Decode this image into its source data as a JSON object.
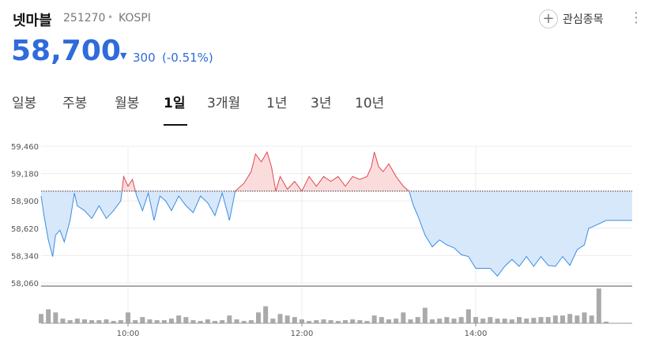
{
  "header": {
    "name": "넷마블",
    "code": "251270",
    "market": "KOSPI",
    "watch_button": "관심종목",
    "price": "58,700",
    "change": "300",
    "change_pct": "(-0.51%)"
  },
  "tabs": {
    "items": [
      "일봉",
      "주봉",
      "월봉",
      "1일",
      "3개월",
      "1년",
      "3년",
      "10년"
    ],
    "selected": 3
  },
  "chart_data": [
    {
      "type": "line",
      "x": [
        "09:00",
        "09:02",
        "09:05",
        "09:08",
        "09:10",
        "09:13",
        "09:16",
        "09:20",
        "09:23",
        "09:25",
        "09:30",
        "09:35",
        "09:40",
        "09:45",
        "09:50",
        "09:55",
        "09:57",
        "10:00",
        "10:03",
        "10:06",
        "10:10",
        "10:14",
        "10:18",
        "10:22",
        "10:26",
        "10:30",
        "10:35",
        "10:40",
        "10:45",
        "10:50",
        "10:55",
        "11:00",
        "11:05",
        "11:10",
        "11:14",
        "11:20",
        "11:25",
        "11:28",
        "11:32",
        "11:36",
        "11:39",
        "11:42",
        "11:45",
        "11:50",
        "11:55",
        "12:00",
        "12:05",
        "12:10",
        "12:15",
        "12:20",
        "12:25",
        "12:30",
        "12:35",
        "12:40",
        "12:45",
        "12:48",
        "12:50",
        "12:53",
        "12:56",
        "13:00",
        "13:05",
        "13:10",
        "13:14",
        "13:17",
        "13:20",
        "13:25",
        "13:30",
        "13:35",
        "13:40",
        "13:45",
        "13:50",
        "13:55",
        "14:00",
        "14:05",
        "14:10",
        "14:15",
        "14:20",
        "14:25",
        "14:30",
        "14:35",
        "14:40",
        "14:45",
        "14:50",
        "14:55",
        "15:00",
        "15:05",
        "15:10",
        "15:15",
        "15:18",
        "15:20",
        "15:30",
        "15:48"
      ],
      "values": [
        58950,
        58750,
        58500,
        58330,
        58550,
        58600,
        58480,
        58700,
        58980,
        58850,
        58800,
        58720,
        58850,
        58720,
        58800,
        58900,
        59150,
        59050,
        59120,
        58950,
        58800,
        58980,
        58700,
        58950,
        58900,
        58800,
        58950,
        58850,
        58780,
        58950,
        58880,
        58750,
        58980,
        58700,
        59000,
        59080,
        59200,
        59380,
        59300,
        59400,
        59250,
        59000,
        59150,
        59020,
        59100,
        59000,
        59150,
        59050,
        59150,
        59100,
        59150,
        59050,
        59150,
        59120,
        59150,
        59250,
        59400,
        59250,
        59200,
        59280,
        59150,
        59050,
        59000,
        58850,
        58750,
        58550,
        58430,
        58500,
        58450,
        58420,
        58350,
        58330,
        58210,
        58210,
        58210,
        58130,
        58230,
        58300,
        58230,
        58330,
        58230,
        58330,
        58240,
        58230,
        58330,
        58240,
        58400,
        58450,
        58620,
        58630,
        58700,
        58700
      ],
      "baseline": 59000,
      "up_color": "#e0474f",
      "down_color": "#3b8de0",
      "up_fill": "#fbdcdd",
      "down_fill": "#d7e8fb",
      "xlim": [
        "09:00",
        "15:48"
      ],
      "xticks": [
        "10:00",
        "12:00",
        "14:00"
      ],
      "ylim": [
        58060,
        59460
      ],
      "yticks": [
        {
          "value": 58060,
          "label": "58,060"
        },
        {
          "value": 58340,
          "label": "58,340"
        },
        {
          "value": 58620,
          "label": "58,620"
        },
        {
          "value": 58900,
          "label": "58,900"
        },
        {
          "value": 59180,
          "label": "59,180"
        },
        {
          "value": 59460,
          "label": "59,460"
        }
      ],
      "grid": true
    },
    {
      "type": "bar",
      "x": [
        "09:00",
        "09:05",
        "09:10",
        "09:15",
        "09:20",
        "09:25",
        "09:30",
        "09:35",
        "09:40",
        "09:45",
        "09:50",
        "09:55",
        "10:00",
        "10:05",
        "10:10",
        "10:15",
        "10:20",
        "10:25",
        "10:30",
        "10:35",
        "10:40",
        "10:45",
        "10:50",
        "10:55",
        "11:00",
        "11:05",
        "11:10",
        "11:15",
        "11:20",
        "11:25",
        "11:30",
        "11:35",
        "11:40",
        "11:45",
        "11:50",
        "11:55",
        "12:00",
        "12:05",
        "12:10",
        "12:15",
        "12:20",
        "12:25",
        "12:30",
        "12:35",
        "12:40",
        "12:45",
        "12:50",
        "12:55",
        "13:00",
        "13:05",
        "13:10",
        "13:15",
        "13:20",
        "13:25",
        "13:30",
        "13:35",
        "13:40",
        "13:45",
        "13:50",
        "13:55",
        "14:00",
        "14:05",
        "14:10",
        "14:15",
        "14:20",
        "14:25",
        "14:30",
        "14:35",
        "14:40",
        "14:45",
        "14:50",
        "14:55",
        "15:00",
        "15:05",
        "15:10",
        "15:15",
        "15:20",
        "15:25",
        "15:30"
      ],
      "values": [
        12,
        18,
        14,
        6,
        4,
        6,
        5,
        4,
        4,
        5,
        3,
        4,
        14,
        4,
        8,
        5,
        4,
        4,
        6,
        10,
        8,
        4,
        3,
        5,
        3,
        4,
        10,
        5,
        3,
        4,
        14,
        22,
        6,
        12,
        10,
        8,
        5,
        3,
        4,
        5,
        4,
        3,
        4,
        5,
        4,
        3,
        10,
        8,
        5,
        6,
        14,
        5,
        8,
        20,
        5,
        6,
        8,
        6,
        8,
        18,
        8,
        6,
        8,
        6,
        6,
        5,
        8,
        6,
        7,
        8,
        8,
        10,
        10,
        12,
        10,
        14,
        10,
        45,
        2
      ],
      "color": "#aaaaaa",
      "xlim": [
        "09:00",
        "15:48"
      ],
      "xticks": [
        "10:00",
        "12:00",
        "14:00"
      ],
      "ylim": [
        0,
        45
      ]
    }
  ]
}
